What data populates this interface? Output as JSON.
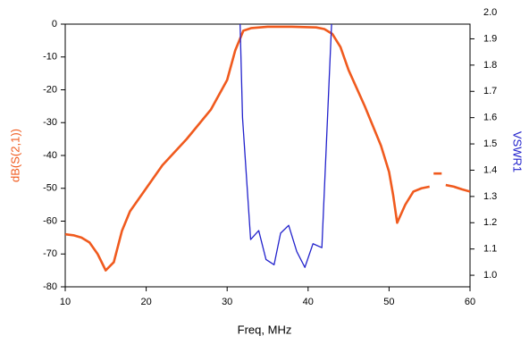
{
  "chart_data": {
    "type": "line",
    "xlabel": "Freq, MHz",
    "ylabel": "dB(S(2,1))",
    "y2label": "VSWR1",
    "ylabel_color": "#f05a1e",
    "y2label_color": "#2222cc",
    "xlim": [
      10,
      60
    ],
    "xticks": [
      10,
      20,
      30,
      40,
      50,
      60
    ],
    "ylim": [
      -80,
      0
    ],
    "yticks": [
      -80,
      -70,
      -60,
      -50,
      -40,
      -30,
      -20,
      -10,
      0
    ],
    "y2lim": [
      0.956,
      1.956
    ],
    "y2ticks": [
      {
        "value": 1.0,
        "label": "1.0"
      },
      1.1,
      1.2,
      1.3,
      1.4,
      1.5,
      1.6,
      1.7,
      1.8,
      1.9,
      {
        "value": 2.0,
        "label": "2.0"
      }
    ],
    "series": [
      {
        "name": "dB(S(2,1))",
        "color": "#f05a1e",
        "axis": "y",
        "x": [
          10,
          11,
          12,
          13,
          14,
          15,
          16,
          17,
          18,
          20,
          22,
          25,
          28,
          30,
          31,
          32,
          33,
          35,
          38,
          41,
          42,
          43,
          44,
          45,
          47,
          49,
          50,
          50.5,
          51,
          52,
          53,
          54,
          55,
          55.3,
          55.5,
          56.5,
          56.7,
          57,
          58,
          59,
          60
        ],
        "values": [
          -64,
          -64.3,
          -65,
          -66.5,
          -70,
          -75,
          -72.5,
          -63,
          -57,
          -50,
          -43,
          -35,
          -26,
          -17,
          -8,
          -2,
          -1.2,
          -0.8,
          -0.8,
          -1,
          -1.5,
          -3,
          -7,
          -14,
          -25,
          -37,
          -45,
          -52,
          -60.5,
          -55,
          -51,
          -50,
          -49.5,
          null,
          -45.5,
          -45.5,
          null,
          -49,
          -49.5,
          -50.3,
          -51
        ]
      },
      {
        "name": "VSWR1",
        "color": "#2222cc",
        "axis": "y2",
        "x": [
          31.6,
          31.9,
          32.9,
          33.9,
          34.8,
          35.8,
          36.6,
          37.6,
          38.6,
          39.6,
          40.6,
          41.7,
          42.9
        ],
        "values": [
          1.956,
          1.6,
          1.136,
          1.17,
          1.06,
          1.04,
          1.16,
          1.19,
          1.09,
          1.03,
          1.12,
          1.105,
          1.956
        ]
      }
    ]
  }
}
